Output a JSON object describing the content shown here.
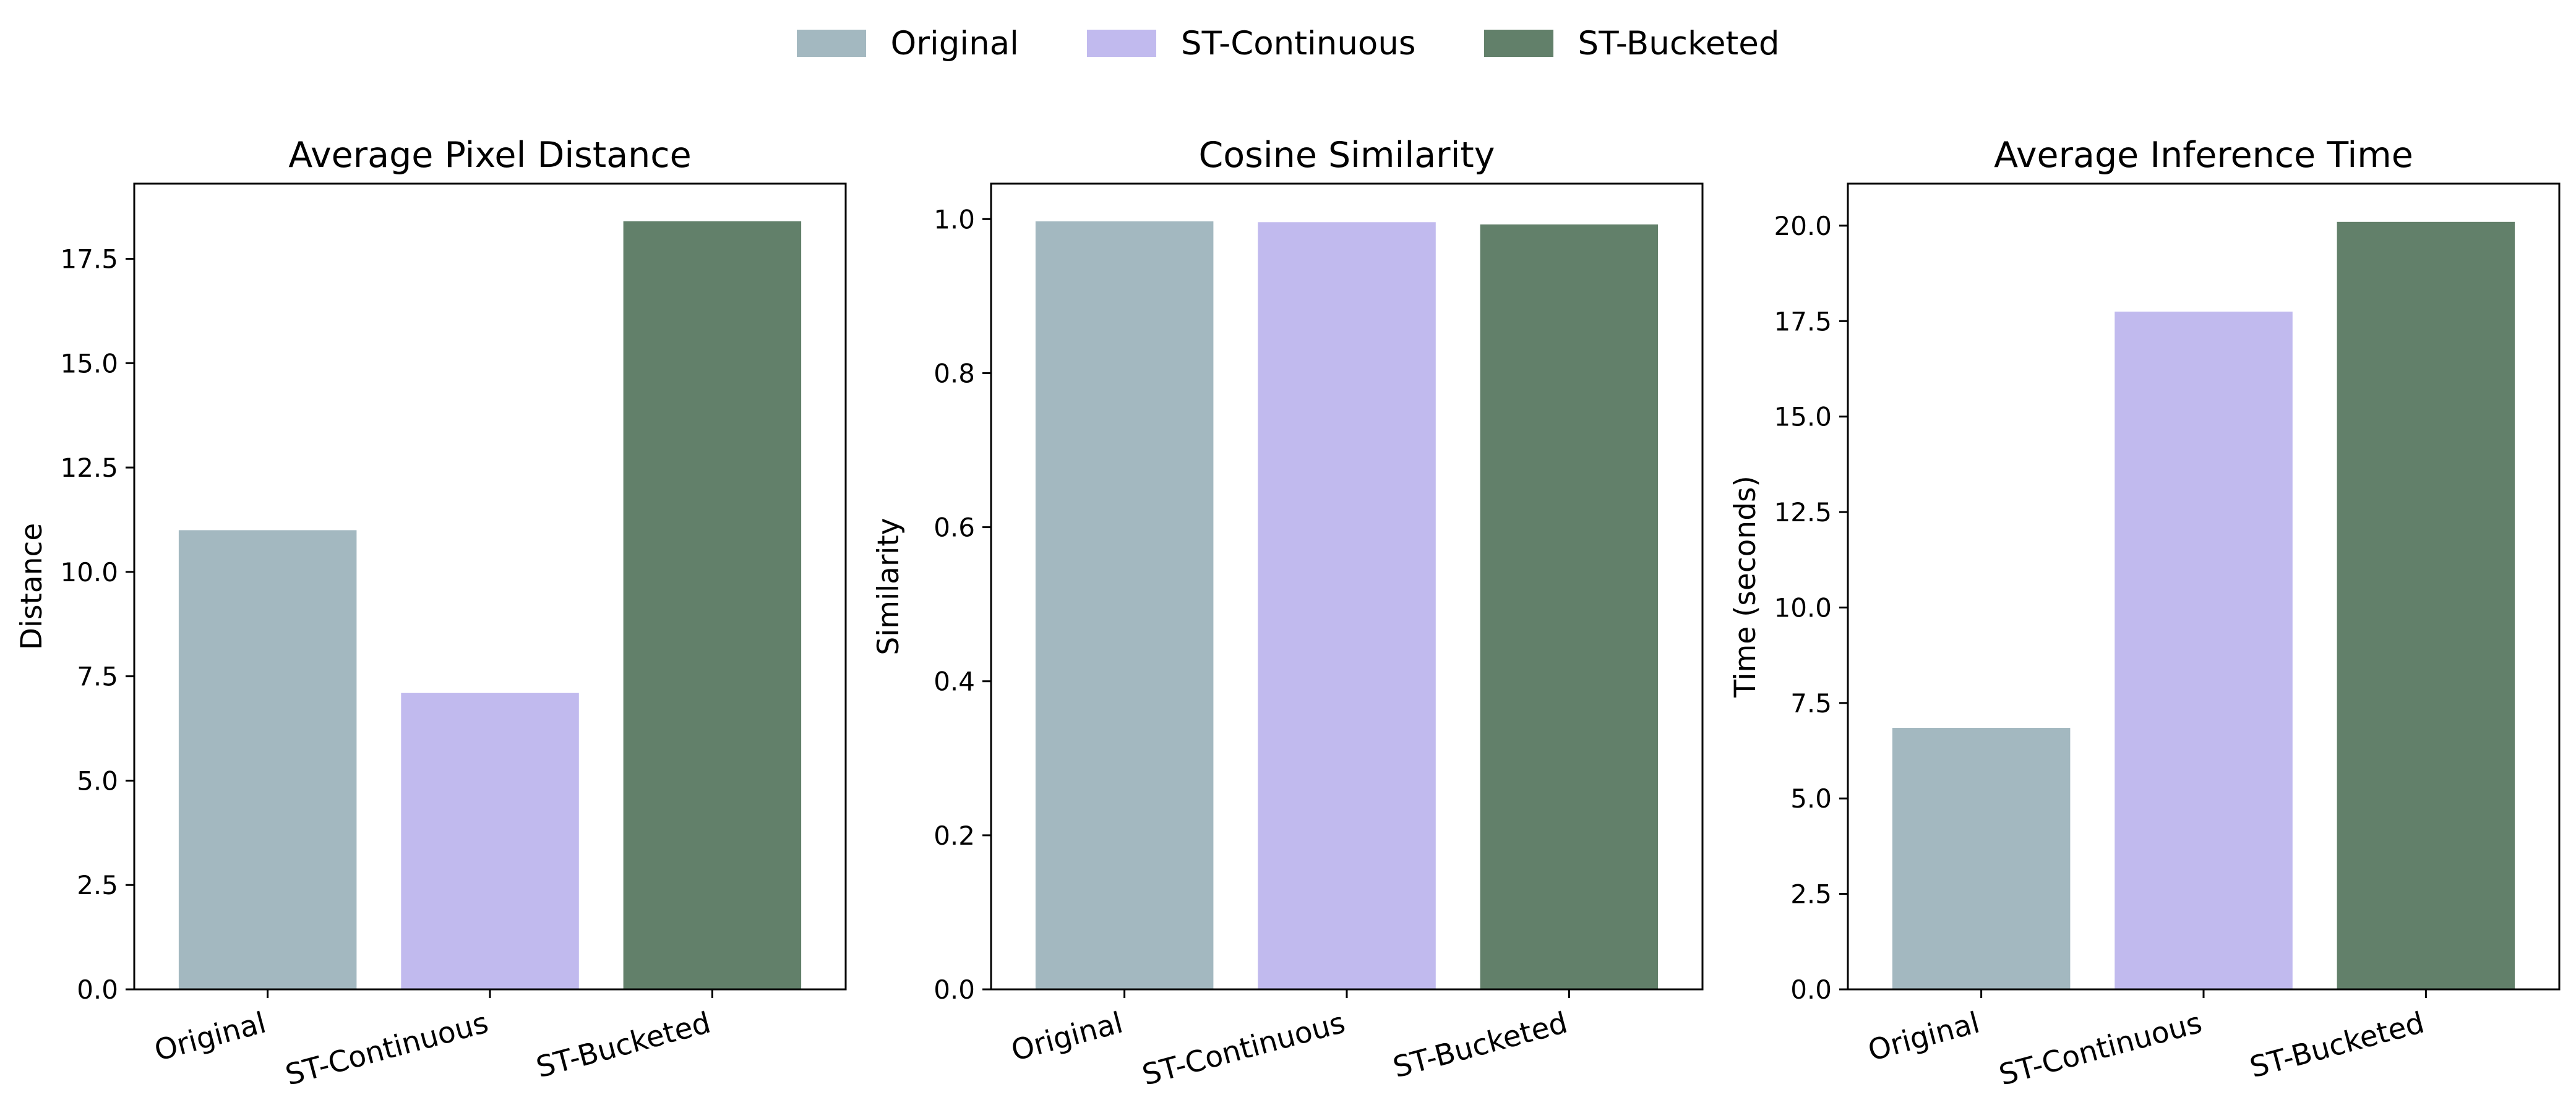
{
  "legend": [
    {
      "label": "Original",
      "color": "#a3b8c0"
    },
    {
      "label": "ST-Continuous",
      "color": "#c1baee"
    },
    {
      "label": "ST-Bucketed",
      "color": "#62806a"
    }
  ],
  "chart_data": [
    {
      "type": "bar",
      "title": "Average Pixel Distance",
      "xlabel": "",
      "ylabel": "Distance",
      "categories": [
        "Original",
        "ST-Continuous",
        "ST-Bucketed"
      ],
      "values": [
        11.0,
        7.1,
        18.4
      ],
      "colors": [
        "#a3b8c0",
        "#c1baee",
        "#62806a"
      ],
      "ylim": [
        0,
        19.3
      ],
      "yticks": [
        0.0,
        2.5,
        5.0,
        7.5,
        10.0,
        12.5,
        15.0,
        17.5
      ],
      "ytick_labels": [
        "0.0",
        "2.5",
        "5.0",
        "7.5",
        "10.0",
        "12.5",
        "15.0",
        "17.5"
      ],
      "grid": false
    },
    {
      "type": "bar",
      "title": "Cosine Similarity",
      "xlabel": "",
      "ylabel": "Similarity",
      "categories": [
        "Original",
        "ST-Continuous",
        "ST-Bucketed"
      ],
      "values": [
        0.997,
        0.996,
        0.993
      ],
      "colors": [
        "#a3b8c0",
        "#c1baee",
        "#62806a"
      ],
      "ylim": [
        0,
        1.046
      ],
      "yticks": [
        0.0,
        0.2,
        0.4,
        0.6,
        0.8,
        1.0
      ],
      "ytick_labels": [
        "0.0",
        "0.2",
        "0.4",
        "0.6",
        "0.8",
        "1.0"
      ],
      "grid": false
    },
    {
      "type": "bar",
      "title": "Average Inference Time",
      "xlabel": "",
      "ylabel": "Time (seconds)",
      "categories": [
        "Original",
        "ST-Continuous",
        "ST-Bucketed"
      ],
      "values": [
        6.85,
        17.75,
        20.1
      ],
      "colors": [
        "#a3b8c0",
        "#c1baee",
        "#62806a"
      ],
      "ylim": [
        0,
        21.1
      ],
      "yticks": [
        0.0,
        2.5,
        5.0,
        7.5,
        10.0,
        12.5,
        15.0,
        17.5,
        20.0
      ],
      "ytick_labels": [
        "0.0",
        "2.5",
        "5.0",
        "7.5",
        "10.0",
        "12.5",
        "15.0",
        "17.5",
        "20.0"
      ],
      "grid": false
    }
  ]
}
